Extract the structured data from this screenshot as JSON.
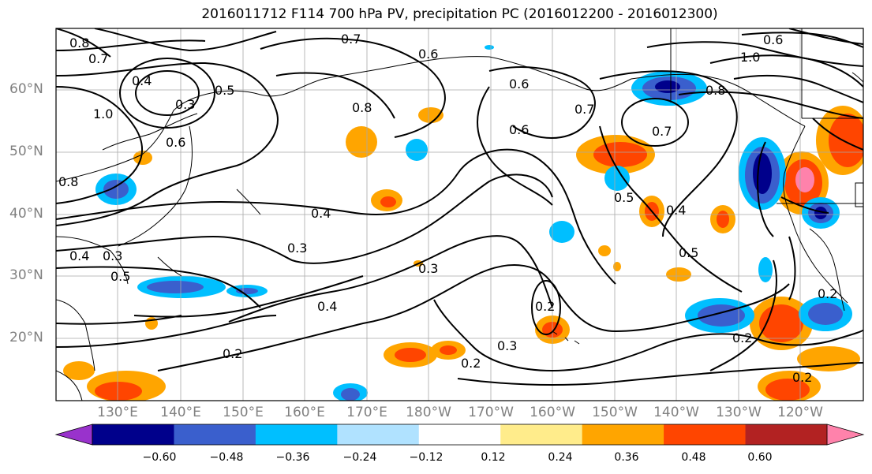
{
  "title": "2016011712 F114 700 hPa PV, precipitation PC (2016012200 - 2016012300)",
  "lat_labels": [
    "60°N",
    "50°N",
    "40°N",
    "30°N",
    "20°N"
  ],
  "lon_labels": [
    "130°E",
    "140°E",
    "150°E",
    "160°E",
    "170°E",
    "180°W",
    "170°W",
    "160°W",
    "150°W",
    "140°W",
    "130°W",
    "120°W"
  ],
  "colorbar": {
    "ticks": [
      "−0.60",
      "−0.48",
      "−0.36",
      "−0.24",
      "−0.12",
      "0.12",
      "0.24",
      "0.36",
      "0.48",
      "0.60"
    ],
    "colors": [
      "#9932cc",
      "#00008b",
      "#3a5fcd",
      "#00bfff",
      "#b0e2ff",
      "#ffffff",
      "#ffec8b",
      "#ffa500",
      "#ff4500",
      "#b22222",
      "#ff82ab"
    ]
  },
  "contour_labels": [
    "0.8",
    "0.7",
    "0.7",
    "0.4",
    "0.3",
    "0.5",
    "0.6",
    "1.0",
    "0.8",
    "0.6",
    "0.6",
    "0.7",
    "0.8",
    "1.0",
    "0.6",
    "0.6",
    "0.7",
    "0.8",
    "0.3",
    "0.5",
    "0.4",
    "0.5",
    "0.4",
    "0.3",
    "0.3",
    "0.4",
    "0.2",
    "0.2",
    "0.3",
    "0.2",
    "0.2",
    "0.2",
    "0.5",
    "0.4",
    "0.2"
  ]
}
